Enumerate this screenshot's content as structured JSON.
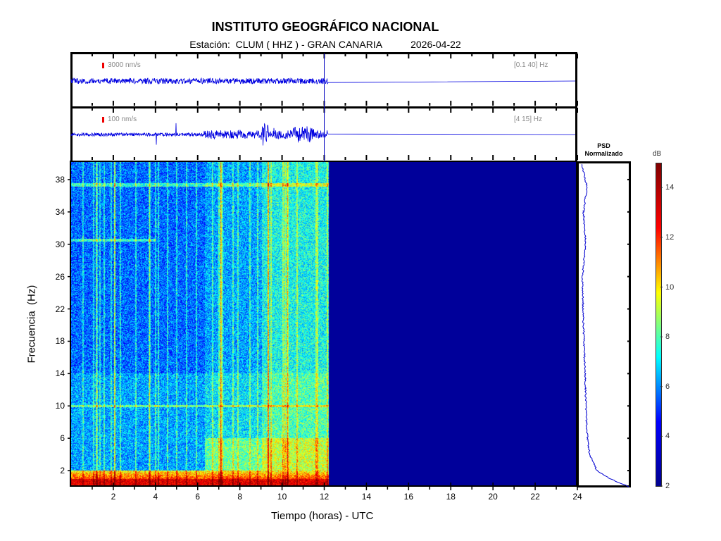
{
  "header": {
    "title": "INSTITUTO GEOGRÁFICO NACIONAL",
    "station_label": "Estación:  CLUM ( HHZ ) - GRAN CANARIA",
    "date": "2026-04-22"
  },
  "traces": [
    {
      "scale": "3000 nm/s",
      "band": "[0.1 40] Hz"
    },
    {
      "scale": "100 nm/s",
      "band": "[4 15] Hz"
    }
  ],
  "psd": {
    "title_line1": "PSD",
    "title_line2": "Normalizado"
  },
  "colorbar": {
    "label": "dB",
    "min": 2,
    "max": 15,
    "ticks": [
      "2",
      "4",
      "6",
      "8",
      "10",
      "12",
      "14"
    ],
    "colors": [
      "#00008f",
      "#0000ff",
      "#00ffff",
      "#ffff00",
      "#ff0000",
      "#800000"
    ]
  },
  "chart_data": {
    "type": "heatmap",
    "title": "INSTITUTO GEOGRÁFICO NACIONAL",
    "xlabel": "Tiempo (horas) - UTC",
    "ylabel": "Frecuencia  (Hz)",
    "xlim": [
      0,
      24
    ],
    "ylim": [
      0,
      40
    ],
    "xticks": [
      "2",
      "4",
      "6",
      "8",
      "10",
      "12",
      "14",
      "16",
      "18",
      "20",
      "22",
      "24"
    ],
    "yticks": [
      "2",
      "6",
      "10",
      "14",
      "18",
      "22",
      "26",
      "30",
      "34",
      "38"
    ],
    "data_end_hour": 12.2,
    "current_time_marker_hour": 12.0,
    "psd_profile": {
      "freq": [
        0,
        1,
        2,
        4,
        6,
        8,
        10,
        14,
        18,
        22,
        26,
        30,
        34,
        37,
        40
      ],
      "value": [
        1.0,
        0.6,
        0.35,
        0.2,
        0.16,
        0.14,
        0.13,
        0.11,
        0.09,
        0.07,
        0.06,
        0.12,
        0.08,
        0.15,
        0.05
      ]
    }
  }
}
